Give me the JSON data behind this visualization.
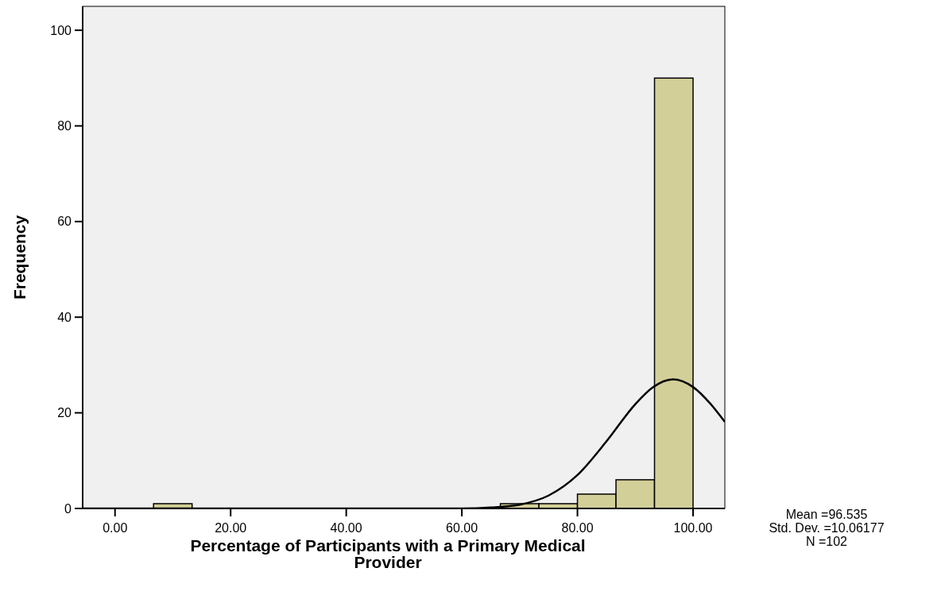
{
  "chart_data": {
    "type": "histogram",
    "xlabel": "Percentage of Participants with a Primary Medical Provider",
    "ylabel": "Frequency",
    "bins": [
      6.667,
      13.333,
      20,
      26.667,
      33.333,
      40,
      46.667,
      53.333,
      60,
      66.667,
      73.333,
      80,
      86.667,
      93.333,
      100
    ],
    "values": [
      1,
      0,
      0,
      0,
      0,
      0,
      0,
      0,
      0,
      1,
      1,
      3,
      6,
      90
    ],
    "color": "#d3cf98",
    "series": [
      {
        "type": "line",
        "color": "#000000",
        "x": [
          -5.6,
          40,
          50,
          60,
          65,
          70,
          75,
          80,
          85,
          90,
          93,
          96.5,
          100,
          103,
          105.5
        ],
        "values": [
          0,
          0,
          0,
          0,
          0.2,
          0.8,
          2.7,
          7.0,
          14.0,
          21.8,
          25.3,
          27.0,
          25.4,
          21.9,
          18.1
        ]
      }
    ],
    "xlim": [
      -5.6,
      105.5
    ],
    "xticks": [
      {
        "value": 0,
        "label": "0.00"
      },
      {
        "value": 20,
        "label": "20.00"
      },
      {
        "value": 40,
        "label": "40.00"
      },
      {
        "value": 60,
        "label": "60.00"
      },
      {
        "value": 80,
        "label": "80.00"
      },
      {
        "value": 100,
        "label": "100.00"
      }
    ],
    "ylim": [
      0,
      105
    ],
    "yticks": [
      0,
      20,
      40,
      60,
      80,
      100
    ],
    "grid": false,
    "annotations": [
      "Mean =96.535",
      "Std. Dev. =10.06177",
      "N =102"
    ]
  }
}
